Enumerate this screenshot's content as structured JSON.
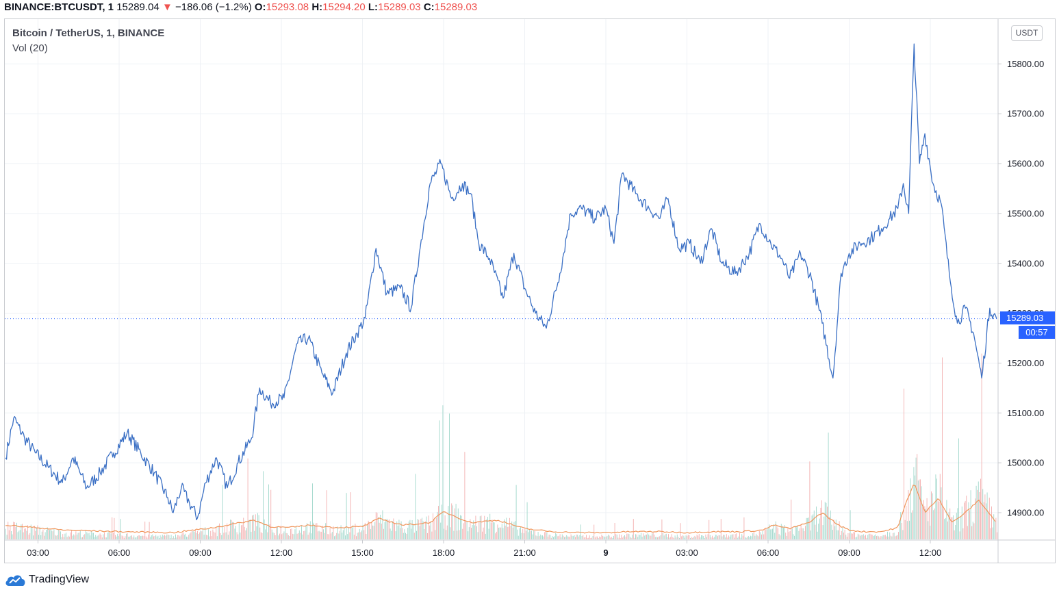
{
  "header": {
    "symbol": "BINANCE:BTCUSDT, 1",
    "last": "15289.04",
    "change_arrow": "▼",
    "change": "−186.06 (−1.2%)",
    "open_label": "O:",
    "open": "15293.08",
    "high_label": "H:",
    "high": "15294.20",
    "low_label": "L:",
    "low": "15289.03",
    "close_label": "C:",
    "close": "15289.03"
  },
  "legend": {
    "title": "Bitcoin / TetherUS, 1, BINANCE",
    "volume": "Vol (20)"
  },
  "price_scale": {
    "currency": "USDT",
    "current_price": "15289.03",
    "countdown": "00:57"
  },
  "brand": {
    "name": "TradingView",
    "icon": "tradingview-cloud-logo"
  },
  "colors": {
    "price_line": "#3a6fc4",
    "volume_ma": "#f0955a",
    "volume_up": "#a9dbd0",
    "volume_down": "#f4b6b6",
    "current_price": "#2962ff",
    "grid": "#eef1f5"
  },
  "chart_data": {
    "type": "line",
    "title": "Bitcoin / TetherUS, 1, BINANCE",
    "xlabel": "",
    "ylabel": "",
    "x_ticks": [
      "03:00",
      "06:00",
      "09:00",
      "12:00",
      "15:00",
      "18:00",
      "21:00",
      "9",
      "03:00",
      "06:00",
      "09:00",
      "12:00"
    ],
    "y_ticks": [
      "14900.00",
      "15000.00",
      "15100.00",
      "15200.00",
      "15300.00",
      "15400.00",
      "15500.00",
      "15600.00",
      "15700.00",
      "15800.00"
    ],
    "ylim": [
      14850,
      15870
    ],
    "x_hours_range": [
      1.8,
      38.45
    ],
    "grid": true,
    "series": [
      {
        "x_hours": [
          1.8,
          2.1,
          2.5,
          2.9,
          3.4,
          3.9,
          4.3,
          4.8,
          5.3,
          5.8,
          6.3,
          6.8,
          7.3,
          7.8,
          8.0,
          8.3,
          8.6,
          8.9,
          9.2,
          9.6,
          10.0,
          10.4,
          10.9,
          11.2,
          11.6,
          12.1,
          12.6,
          13.0,
          13.5,
          13.9,
          14.4,
          14.8,
          15.1,
          15.5,
          15.9,
          16.4,
          16.8,
          17.1,
          17.5,
          17.9,
          18.3,
          18.7,
          19.0,
          19.3,
          19.7,
          20.2,
          20.6,
          21.0,
          21.4,
          21.8,
          22.3,
          22.7,
          23.1,
          23.6,
          24.0,
          24.3,
          24.6,
          25.1,
          25.6,
          26.0,
          26.3,
          26.7,
          27.1,
          27.5,
          27.9,
          28.3,
          28.8,
          29.3,
          29.7,
          30.1,
          30.5,
          30.8,
          31.2,
          31.6,
          32.0,
          32.4,
          32.7,
          33.0,
          33.4,
          33.8,
          34.2,
          34.5,
          34.8,
          35.0,
          35.2,
          35.4,
          35.6,
          35.8,
          36.1,
          36.4,
          36.7,
          37.0,
          37.3,
          37.6,
          37.9,
          38.2,
          38.45
        ],
        "y": [
          15010,
          15090,
          15050,
          15020,
          14990,
          14960,
          15010,
          14950,
          14980,
          15020,
          15060,
          15020,
          14980,
          14930,
          14900,
          14950,
          14920,
          14890,
          14960,
          15010,
          14950,
          15000,
          15050,
          15150,
          15120,
          15130,
          15240,
          15250,
          15180,
          15140,
          15220,
          15260,
          15290,
          15430,
          15340,
          15350,
          15310,
          15420,
          15560,
          15600,
          15530,
          15560,
          15540,
          15440,
          15410,
          15330,
          15420,
          15350,
          15300,
          15270,
          15380,
          15500,
          15510,
          15490,
          15510,
          15440,
          15580,
          15540,
          15510,
          15490,
          15530,
          15430,
          15440,
          15400,
          15470,
          15400,
          15380,
          15420,
          15480,
          15440,
          15410,
          15370,
          15420,
          15370,
          15280,
          15170,
          15380,
          15420,
          15440,
          15450,
          15470,
          15490,
          15510,
          15560,
          15500,
          15840,
          15600,
          15660,
          15560,
          15520,
          15380,
          15280,
          15310,
          15260,
          15170,
          15310,
          15289
        ]
      }
    ],
    "volume": {
      "label": "Vol (20)",
      "x_hours": [
        1.8,
        4.0,
        6.0,
        8.0,
        9.5,
        10.5,
        11.0,
        11.6,
        12.3,
        13.0,
        14.0,
        15.0,
        15.6,
        16.5,
        17.5,
        18.0,
        19.0,
        20.0,
        21.0,
        22.0,
        23.0,
        24.0,
        25.0,
        26.0,
        27.0,
        28.0,
        29.0,
        29.8,
        30.2,
        30.8,
        31.5,
        32.0,
        32.6,
        33.0,
        33.5,
        34.2,
        34.8,
        35.1,
        35.4,
        35.8,
        36.3,
        36.8,
        37.3,
        37.8,
        38.3,
        38.45
      ],
      "ma": [
        14875,
        14865,
        14862,
        14860,
        14870,
        14880,
        14885,
        14872,
        14870,
        14875,
        14870,
        14872,
        14888,
        14875,
        14880,
        14902,
        14880,
        14885,
        14868,
        14862,
        14860,
        14860,
        14862,
        14862,
        14860,
        14862,
        14862,
        14865,
        14875,
        14868,
        14880,
        14900,
        14875,
        14865,
        14862,
        14862,
        14870,
        14920,
        14960,
        14900,
        14930,
        14880,
        14900,
        14925,
        14890,
        14880
      ]
    }
  }
}
